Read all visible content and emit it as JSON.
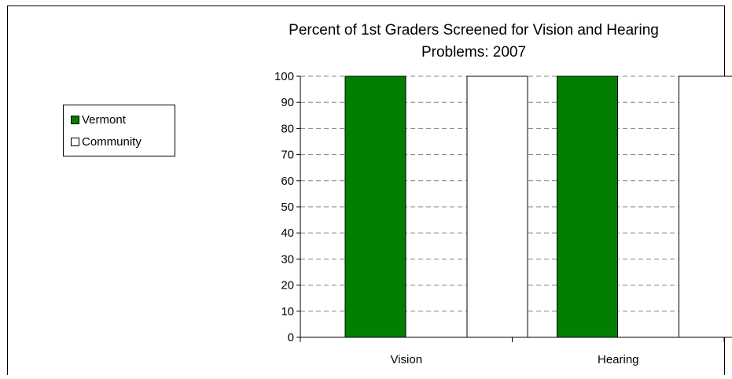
{
  "chart_data": {
    "type": "bar",
    "title": "Percent of 1st Graders Screened for Vision and Hearing\nProblems: 2007",
    "categories": [
      "Vision",
      "Hearing"
    ],
    "series": [
      {
        "name": "Vermont",
        "values": [
          100,
          100
        ],
        "color": "#008000"
      },
      {
        "name": "Community",
        "values": [
          100,
          100
        ],
        "color": "#ffffff"
      }
    ],
    "ylim": [
      0,
      100
    ],
    "yticks": [
      0,
      10,
      20,
      30,
      40,
      50,
      60,
      70,
      80,
      90,
      100
    ],
    "grid": true,
    "legend_position": "left"
  }
}
